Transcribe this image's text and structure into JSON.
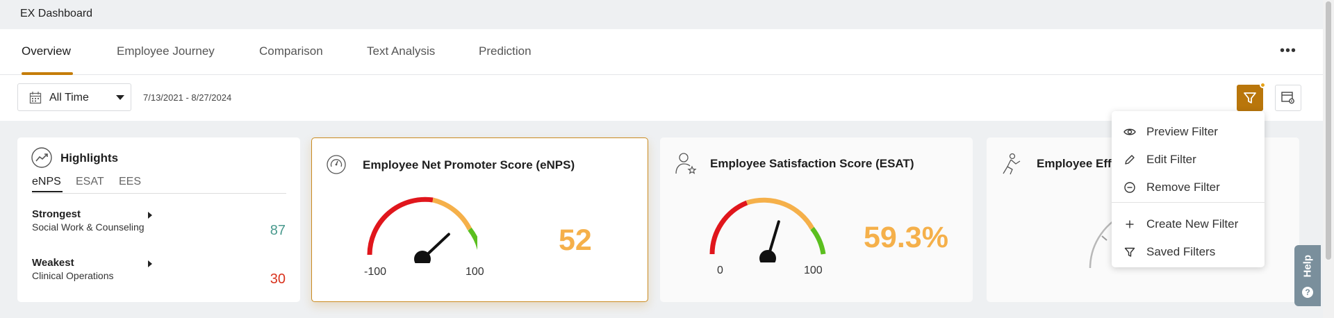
{
  "app": {
    "title": "EX Dashboard"
  },
  "tabs": [
    {
      "label": "Overview",
      "active": true
    },
    {
      "label": "Employee Journey",
      "active": false
    },
    {
      "label": "Comparison",
      "active": false
    },
    {
      "label": "Text Analysis",
      "active": false
    },
    {
      "label": "Prediction",
      "active": false
    }
  ],
  "more_icon": "ellipsis-icon",
  "filter_bar": {
    "date_select": "All Time",
    "date_range": "7/13/2021 - 8/27/2024",
    "filter_icon": "funnel-icon",
    "settings_icon": "dashboard-settings-icon"
  },
  "highlights": {
    "title": "Highlights",
    "tabs": [
      "eNPS",
      "ESAT",
      "EES"
    ],
    "strongest": {
      "label": "Strongest",
      "name": "Social Work & Counseling",
      "value": "87",
      "color": "#4a9a8e"
    },
    "weakest": {
      "label": "Weakest",
      "name": "Clinical Operations",
      "value": "30",
      "color": "#d9331e"
    }
  },
  "enps": {
    "title": "Employee Net Promoter Score (eNPS)",
    "value": "52",
    "gauge_value": 52,
    "min": "-100",
    "max": "100",
    "min_num": -100,
    "max_num": 100
  },
  "esat": {
    "title": "Employee Satisfaction Score (ESAT)",
    "value": "59.3%",
    "gauge_value": 59.3,
    "min": "0",
    "max": "100",
    "min_num": 0,
    "max_num": 100
  },
  "ees": {
    "title": "Employee Eff"
  },
  "filter_menu": {
    "items": [
      {
        "label": "Preview Filter",
        "icon": "eye-icon"
      },
      {
        "label": "Edit Filter",
        "icon": "pencil-icon"
      },
      {
        "label": "Remove Filter",
        "icon": "minus-circle-icon"
      },
      {
        "label": "Create New Filter",
        "icon": "plus-icon"
      },
      {
        "label": "Saved Filters",
        "icon": "funnel-icon"
      }
    ]
  },
  "help": {
    "label": "Help"
  },
  "colors": {
    "accent": "#b9760b",
    "score": "#f5b04a",
    "red": "#e0161c",
    "orange": "#f5b04a",
    "green": "#5bbf1f"
  }
}
